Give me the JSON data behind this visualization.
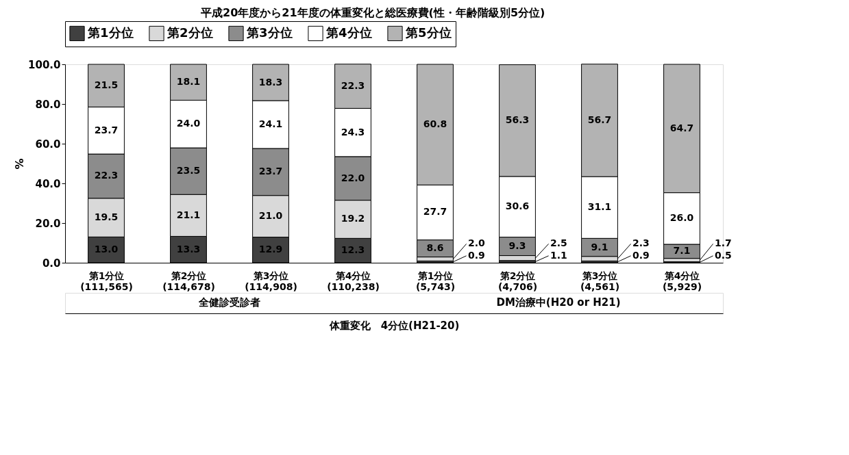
{
  "chart_data": {
    "type": "bar",
    "stacked": true,
    "title": "平成20年度から21年度の体重変化と総医療費(性・年齢階級別5分位)",
    "ylabel": "%",
    "xlabel": "体重変化　4分位(H21-20)",
    "categories": [
      "第1分位\n(111,565)",
      "第2分位\n(114,678)",
      "第3分位\n(114,908)",
      "第4分位\n(110,238)",
      "第1分位\n(5,743)",
      "第2分位\n(4,706)",
      "第3分位\n(4,561)",
      "第4分位\n(5,929)"
    ],
    "series": [
      {
        "name": "第1分位",
        "color": "#404040",
        "values": [
          13.0,
          13.3,
          12.9,
          12.3,
          0.9,
          1.1,
          0.9,
          0.5
        ],
        "value_labels": [
          "13.0",
          "13.3",
          "12.9",
          "12.3",
          "0.9",
          "1.1",
          "0.9",
          "0.5"
        ]
      },
      {
        "name": "第2分位",
        "color": "#d9d9d9",
        "values": [
          19.5,
          21.1,
          21.0,
          19.2,
          2.0,
          2.5,
          2.3,
          1.7
        ],
        "value_labels": [
          "19.5",
          "21.1",
          "21.0",
          "19.2",
          "2.0",
          "2.5",
          "2.3",
          "1.7"
        ]
      },
      {
        "name": "第3分位",
        "color": "#8c8c8c",
        "values": [
          22.3,
          23.5,
          23.7,
          22.0,
          8.6,
          9.3,
          9.1,
          7.1
        ],
        "value_labels": [
          "22.3",
          "23.5",
          "23.7",
          "22.0",
          "8.6",
          "9.3",
          "9.1",
          "7.1"
        ]
      },
      {
        "name": "第4分位",
        "color": "#ffffff",
        "values": [
          23.7,
          24.0,
          24.1,
          24.3,
          27.7,
          30.6,
          31.1,
          26.0
        ],
        "value_labels": [
          "23.7",
          "24.0",
          "24.1",
          "24.3",
          "27.7",
          "30.6",
          "31.1",
          "26.0"
        ]
      },
      {
        "name": "第5分位",
        "color": "#b3b3b3",
        "values": [
          21.5,
          18.1,
          18.3,
          22.3,
          60.8,
          56.3,
          56.7,
          64.7
        ],
        "value_labels": [
          "21.5",
          "18.1",
          "18.3",
          "22.3",
          "60.8",
          "56.3",
          "56.7",
          "64.7"
        ]
      }
    ],
    "ylim": [
      0,
      100
    ],
    "yticks": [
      {
        "value": 0,
        "label": "0.0"
      },
      {
        "value": 20,
        "label": "20.0"
      },
      {
        "value": 40,
        "label": "40.0"
      },
      {
        "value": 60,
        "label": "60.0"
      },
      {
        "value": 80,
        "label": "80.0"
      },
      {
        "value": 100,
        "label": "100.0"
      }
    ],
    "legend": "top",
    "annotations": [
      "全健診受診者",
      "DM治療中(H20 or H21)"
    ]
  }
}
